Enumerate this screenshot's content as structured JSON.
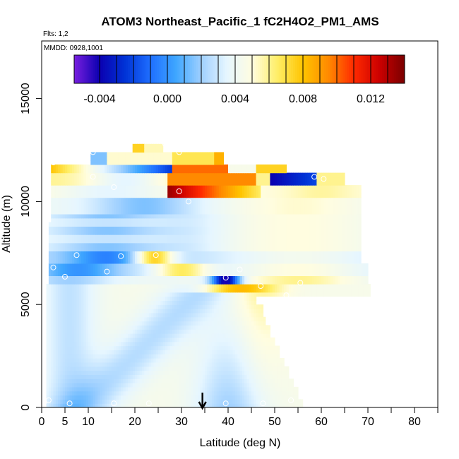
{
  "chart_data": {
    "type": "heatmap",
    "title": "ATOM3 Northeast_Pacific_1 fC2H4O2_PM1_AMS",
    "subtitle_flights": "Flts: 1,2",
    "subtitle_dates": "MMDD: 0928,1001",
    "xlabel": "Latitude (deg N)",
    "ylabel": "Altitude (m)",
    "xlim": [
      0,
      85
    ],
    "ylim": [
      0,
      17800
    ],
    "x_ticks": [
      0,
      5,
      10,
      20,
      30,
      40,
      50,
      60,
      70,
      80
    ],
    "y_ticks": [
      0,
      5000,
      10000,
      15000
    ],
    "colorbar": {
      "min": -0.0055,
      "max": 0.014,
      "tick_values": [
        -0.004,
        0.0,
        0.004,
        0.008,
        0.012
      ],
      "tick_labels": [
        "-0.004",
        "0.000",
        "0.004",
        "0.008",
        "0.012"
      ],
      "colors": [
        "#7a1fe0",
        "#0b00b0",
        "#0033d6",
        "#1f6fff",
        "#3ea6ff",
        "#9fd0ff",
        "#e6f6ff",
        "#fffde0",
        "#ffee66",
        "#ffc400",
        "#ff8a00",
        "#ff2a00",
        "#cc0000",
        "#7a0000"
      ]
    },
    "marker_latitude": 34.5,
    "sample_points": [
      {
        "lat": 0.5,
        "alt": 250
      },
      {
        "lat": 1.5,
        "alt": 350
      },
      {
        "lat": 6,
        "alt": 200
      },
      {
        "lat": 15.5,
        "alt": 200
      },
      {
        "lat": 23,
        "alt": 200
      },
      {
        "lat": 39.5,
        "alt": 200
      },
      {
        "lat": 47.5,
        "alt": 200
      },
      {
        "lat": 53.5,
        "alt": 350
      },
      {
        "lat": 2.5,
        "alt": 6800
      },
      {
        "lat": 5,
        "alt": 6350
      },
      {
        "lat": 7.5,
        "alt": 7400
      },
      {
        "lat": 14,
        "alt": 6600
      },
      {
        "lat": 17,
        "alt": 7350
      },
      {
        "lat": 24.5,
        "alt": 7400
      },
      {
        "lat": 39.5,
        "alt": 6300
      },
      {
        "lat": 42.5,
        "alt": 6700
      },
      {
        "lat": 47,
        "alt": 5900
      },
      {
        "lat": 52.5,
        "alt": 5450
      },
      {
        "lat": 55.5,
        "alt": 6050
      },
      {
        "lat": 2.5,
        "alt": 11900
      },
      {
        "lat": 11,
        "alt": 12400
      },
      {
        "lat": 11,
        "alt": 11200
      },
      {
        "lat": 15.5,
        "alt": 10700
      },
      {
        "lat": 26.5,
        "alt": 12800
      },
      {
        "lat": 29.5,
        "alt": 12400
      },
      {
        "lat": 29.5,
        "alt": 10500
      },
      {
        "lat": 31.5,
        "alt": 10000
      },
      {
        "lat": 58.5,
        "alt": 11200
      },
      {
        "lat": 60.5,
        "alt": 11100
      }
    ]
  }
}
